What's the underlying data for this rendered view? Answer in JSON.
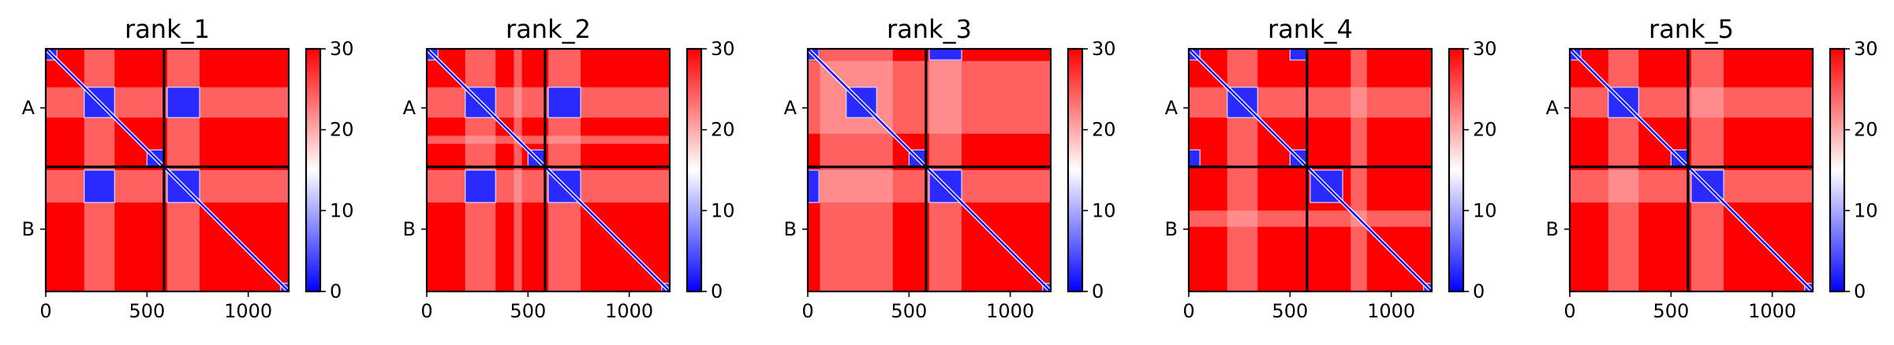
{
  "chart_data": [
    {
      "type": "heatmap",
      "title": "rank_1",
      "xlim": [
        0,
        1200
      ],
      "x_ticks": [
        0,
        500,
        1000
      ],
      "y_ticks": [
        "A",
        "B"
      ],
      "chain_boundary": 584,
      "colorbar": {
        "min": 0,
        "max": 30,
        "ticks": [
          0,
          10,
          20,
          30
        ],
        "colormap": [
          "#0000ff",
          "#ffffff",
          "#ff0000"
        ]
      },
      "blue_blocks": [
        [
          0,
          0,
          55,
          55
        ],
        [
          190,
          190,
          340,
          340
        ],
        [
          500,
          500,
          584,
          584
        ],
        [
          190,
          600,
          340,
          760
        ],
        [
          600,
          190,
          760,
          340
        ],
        [
          600,
          600,
          760,
          760
        ],
        [
          1160,
          1160,
          1200,
          1200
        ]
      ],
      "light_bands": [
        [
          190,
          340
        ],
        [
          600,
          760
        ]
      ]
    },
    {
      "type": "heatmap",
      "title": "rank_2",
      "xlim": [
        0,
        1200
      ],
      "x_ticks": [
        0,
        500,
        1000
      ],
      "y_ticks": [
        "A",
        "B"
      ],
      "chain_boundary": 584,
      "colorbar": {
        "min": 0,
        "max": 30,
        "ticks": [
          0,
          10,
          20,
          30
        ],
        "colormap": [
          "#0000ff",
          "#ffffff",
          "#ff0000"
        ]
      },
      "blue_blocks": [
        [
          0,
          0,
          55,
          55
        ],
        [
          190,
          190,
          340,
          340
        ],
        [
          500,
          500,
          584,
          584
        ],
        [
          190,
          600,
          340,
          760
        ],
        [
          600,
          190,
          760,
          340
        ],
        [
          600,
          600,
          760,
          760
        ],
        [
          1160,
          1160,
          1200,
          1200
        ]
      ],
      "light_bands": [
        [
          190,
          340
        ],
        [
          430,
          470
        ],
        [
          600,
          760
        ]
      ]
    },
    {
      "type": "heatmap",
      "title": "rank_3",
      "xlim": [
        0,
        1200
      ],
      "x_ticks": [
        0,
        500,
        1000
      ],
      "y_ticks": [
        "A",
        "B"
      ],
      "chain_boundary": 584,
      "colorbar": {
        "min": 0,
        "max": 30,
        "ticks": [
          0,
          10,
          20,
          30
        ],
        "colormap": [
          "#0000ff",
          "#ffffff",
          "#ff0000"
        ]
      },
      "blue_blocks": [
        [
          0,
          0,
          55,
          55
        ],
        [
          190,
          190,
          340,
          340
        ],
        [
          500,
          500,
          584,
          584
        ],
        [
          0,
          600,
          55,
          760
        ],
        [
          600,
          0,
          760,
          55
        ],
        [
          600,
          600,
          760,
          760
        ],
        [
          1160,
          1160,
          1200,
          1200
        ]
      ],
      "light_bands": [
        [
          60,
          420
        ],
        [
          600,
          760
        ]
      ]
    },
    {
      "type": "heatmap",
      "title": "rank_4",
      "xlim": [
        0,
        1200
      ],
      "x_ticks": [
        0,
        500,
        1000
      ],
      "y_ticks": [
        "A",
        "B"
      ],
      "chain_boundary": 584,
      "colorbar": {
        "min": 0,
        "max": 30,
        "ticks": [
          0,
          10,
          20,
          30
        ],
        "colormap": [
          "#0000ff",
          "#ffffff",
          "#ff0000"
        ]
      },
      "blue_blocks": [
        [
          0,
          0,
          55,
          55
        ],
        [
          190,
          190,
          340,
          340
        ],
        [
          500,
          500,
          584,
          584
        ],
        [
          0,
          500,
          55,
          584
        ],
        [
          500,
          0,
          584,
          55
        ],
        [
          600,
          600,
          760,
          760
        ],
        [
          1160,
          1160,
          1200,
          1200
        ]
      ],
      "light_bands": [
        [
          190,
          340
        ],
        [
          800,
          880
        ]
      ]
    },
    {
      "type": "heatmap",
      "title": "rank_5",
      "xlim": [
        0,
        1200
      ],
      "x_ticks": [
        0,
        500,
        1000
      ],
      "y_ticks": [
        "A",
        "B"
      ],
      "chain_boundary": 584,
      "colorbar": {
        "min": 0,
        "max": 30,
        "ticks": [
          0,
          10,
          20,
          30
        ],
        "colormap": [
          "#0000ff",
          "#ffffff",
          "#ff0000"
        ]
      },
      "blue_blocks": [
        [
          0,
          0,
          55,
          55
        ],
        [
          190,
          190,
          340,
          340
        ],
        [
          500,
          500,
          584,
          584
        ],
        [
          600,
          600,
          760,
          760
        ],
        [
          1160,
          1160,
          1200,
          1200
        ]
      ],
      "light_bands": [
        [
          190,
          340
        ],
        [
          600,
          760
        ]
      ]
    }
  ]
}
